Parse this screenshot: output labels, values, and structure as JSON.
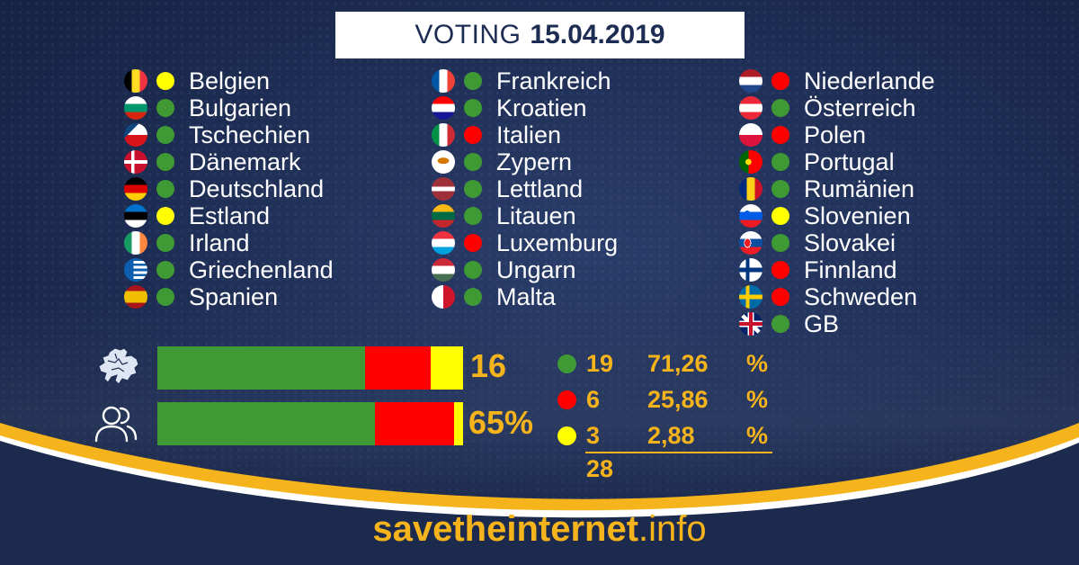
{
  "header": {
    "title_word": "VOTING",
    "title_date": "15.04.2019"
  },
  "colors": {
    "green": "#3f9a35",
    "red": "#ff0000",
    "yellow": "#ffff00",
    "accent": "#f5b31c",
    "background": "#1d2c52"
  },
  "countries": {
    "col1": [
      {
        "name": "Belgien",
        "vote": "yellow",
        "flag": "belgium-flag"
      },
      {
        "name": "Bulgarien",
        "vote": "green",
        "flag": "bulgaria-flag"
      },
      {
        "name": "Tschechien",
        "vote": "green",
        "flag": "czechia-flag"
      },
      {
        "name": "Dänemark",
        "vote": "green",
        "flag": "denmark-flag"
      },
      {
        "name": "Deutschland",
        "vote": "green",
        "flag": "germany-flag"
      },
      {
        "name": "Estland",
        "vote": "yellow",
        "flag": "estonia-flag"
      },
      {
        "name": "Irland",
        "vote": "green",
        "flag": "ireland-flag"
      },
      {
        "name": "Griechenland",
        "vote": "green",
        "flag": "greece-flag"
      },
      {
        "name": "Spanien",
        "vote": "green",
        "flag": "spain-flag"
      }
    ],
    "col2": [
      {
        "name": "Frankreich",
        "vote": "green",
        "flag": "france-flag"
      },
      {
        "name": "Kroatien",
        "vote": "green",
        "flag": "croatia-flag"
      },
      {
        "name": "Italien",
        "vote": "red",
        "flag": "italy-flag"
      },
      {
        "name": "Zypern",
        "vote": "green",
        "flag": "cyprus-flag"
      },
      {
        "name": "Lettland",
        "vote": "green",
        "flag": "latvia-flag"
      },
      {
        "name": "Litauen",
        "vote": "green",
        "flag": "lithuania-flag"
      },
      {
        "name": "Luxemburg",
        "vote": "red",
        "flag": "luxembourg-flag"
      },
      {
        "name": "Ungarn",
        "vote": "green",
        "flag": "hungary-flag"
      },
      {
        "name": "Malta",
        "vote": "green",
        "flag": "malta-flag"
      }
    ],
    "col3": [
      {
        "name": "Niederlande",
        "vote": "red",
        "flag": "netherlands-flag"
      },
      {
        "name": "Österreich",
        "vote": "green",
        "flag": "austria-flag"
      },
      {
        "name": "Polen",
        "vote": "red",
        "flag": "poland-flag"
      },
      {
        "name": "Portugal",
        "vote": "green",
        "flag": "portugal-flag"
      },
      {
        "name": "Rumänien",
        "vote": "green",
        "flag": "romania-flag"
      },
      {
        "name": "Slovenien",
        "vote": "yellow",
        "flag": "slovenia-flag"
      },
      {
        "name": "Slovakei",
        "vote": "green",
        "flag": "slovakia-flag"
      },
      {
        "name": "Finnland",
        "vote": "red",
        "flag": "finland-flag"
      },
      {
        "name": "Schweden",
        "vote": "red",
        "flag": "sweden-flag"
      },
      {
        "name": "GB",
        "vote": "green",
        "flag": "uk-flag"
      }
    ]
  },
  "bars": {
    "states": {
      "label": "16",
      "icon": "eu-map-icon",
      "shares": {
        "green": 0.6786,
        "red": 0.2143,
        "yellow": 0.1071
      }
    },
    "population": {
      "label": "65%",
      "icon": "people-icon",
      "shares": {
        "green": 0.7126,
        "red": 0.2586,
        "yellow": 0.0288
      }
    }
  },
  "stats": {
    "rows": [
      {
        "color": "green",
        "count": "19",
        "percent": "71,26",
        "unit": "%"
      },
      {
        "color": "red",
        "count": "6",
        "percent": "25,86",
        "unit": "%"
      },
      {
        "color": "yellow",
        "count": "3",
        "percent": "2,88",
        "unit": "%"
      }
    ],
    "total": "28"
  },
  "footer": {
    "site_main": "savetheinternet",
    "site_tld": ".info"
  }
}
